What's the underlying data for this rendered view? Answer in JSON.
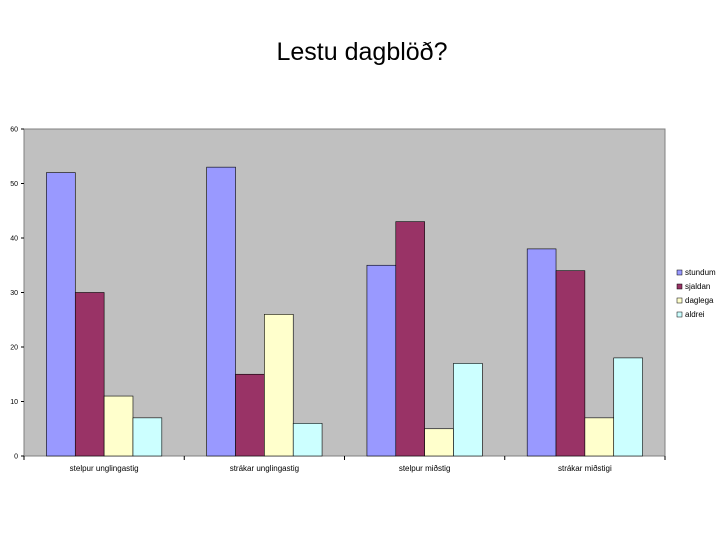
{
  "title": "Lestu dagblöð?",
  "chart_data": {
    "type": "bar",
    "categories": [
      "stelpur unglingastig",
      "strákar unglingastig",
      "stelpur miðstig",
      "strákar miðstigi"
    ],
    "series": [
      {
        "name": "stundum",
        "color": "#9999ff",
        "values": [
          52,
          53,
          35,
          38
        ]
      },
      {
        "name": "sjaldan",
        "color": "#993366",
        "values": [
          30,
          15,
          43,
          34
        ]
      },
      {
        "name": "daglega",
        "color": "#ffffcc",
        "values": [
          11,
          26,
          5,
          7
        ]
      },
      {
        "name": "aldrei",
        "color": "#ccffff",
        "values": [
          7,
          6,
          17,
          18
        ]
      }
    ],
    "ylim": [
      0,
      60
    ],
    "yticks": [
      0,
      10,
      20,
      30,
      40,
      50,
      60
    ],
    "grid": false,
    "plot_background": "#c0c0c0",
    "legend_position": "right"
  }
}
